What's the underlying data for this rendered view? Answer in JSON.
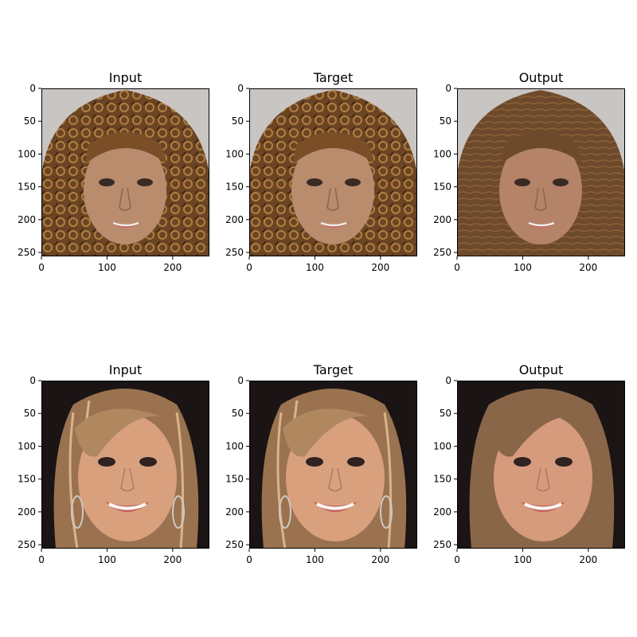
{
  "panels": [
    {
      "title": "Input",
      "scene": "face-curly"
    },
    {
      "title": "Target",
      "scene": "face-curly"
    },
    {
      "title": "Output",
      "scene": "face-curly-smooth"
    },
    {
      "title": "Input",
      "scene": "face-blonde"
    },
    {
      "title": "Target",
      "scene": "face-blonde"
    },
    {
      "title": "Output",
      "scene": "face-blonde-smooth"
    }
  ],
  "axes": {
    "x_ticks": [
      "0",
      "100",
      "200"
    ],
    "y_ticks": [
      "0",
      "50",
      "100",
      "150",
      "200",
      "250"
    ],
    "x_tick_values": [
      0,
      100,
      200
    ],
    "y_tick_values": [
      0,
      50,
      100,
      150,
      200,
      250
    ],
    "image_extent": [
      256,
      256
    ]
  },
  "colors": {
    "background_curly": "#c9c5c3",
    "background_blonde": "#1a1414",
    "skin_curly": "#b98c6e",
    "hair_curly": "#6b4424",
    "skin_blonde": "#d9a07e",
    "hair_blonde": "#9a7250"
  }
}
